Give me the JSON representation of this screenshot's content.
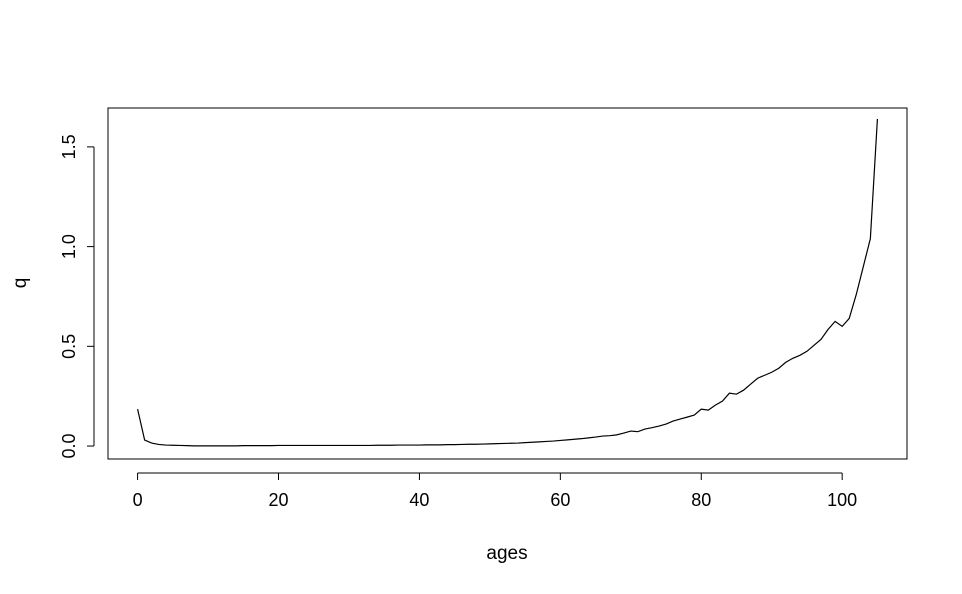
{
  "chart_data": {
    "type": "line",
    "title": "",
    "xlabel": "ages",
    "ylabel": "q",
    "xlim": [
      -4.2,
      109.2
    ],
    "ylim": [
      -0.065,
      1.695
    ],
    "grid": false,
    "legend": "none",
    "xticks": [
      0,
      20,
      40,
      60,
      80,
      100
    ],
    "yticks": [
      0.0,
      0.5,
      1.0,
      1.5
    ],
    "xtick_labels": [
      "0",
      "20",
      "40",
      "60",
      "80",
      "100"
    ],
    "ytick_labels": [
      "0.0",
      "0.5",
      "1.0",
      "1.5"
    ],
    "line_color": "#000000",
    "series": [
      {
        "x": [
          0,
          1,
          2,
          3,
          4,
          5,
          6,
          7,
          8,
          9,
          10,
          11,
          12,
          13,
          14,
          15,
          16,
          17,
          18,
          19,
          20,
          21,
          22,
          23,
          24,
          25,
          26,
          27,
          28,
          29,
          30,
          31,
          32,
          33,
          34,
          35,
          36,
          37,
          38,
          39,
          40,
          41,
          42,
          43,
          44,
          45,
          46,
          47,
          48,
          49,
          50,
          51,
          52,
          53,
          54,
          55,
          56,
          57,
          58,
          59,
          60,
          61,
          62,
          63,
          64,
          65,
          66,
          67,
          68,
          69,
          70,
          71,
          72,
          73,
          74,
          75,
          76,
          77,
          78,
          79,
          80,
          81,
          82,
          83,
          84,
          85,
          86,
          87,
          88,
          89,
          90,
          91,
          92,
          93,
          94,
          95,
          96,
          97,
          98,
          99,
          100,
          101,
          102,
          103,
          104,
          105
        ],
        "values": [
          0.185,
          0.03,
          0.015,
          0.008,
          0.005,
          0.004,
          0.003,
          0.002,
          0.001,
          0.001,
          0.001,
          0.001,
          0.001,
          0.001,
          0.001,
          0.002,
          0.002,
          0.002,
          0.002,
          0.002,
          0.003,
          0.003,
          0.003,
          0.003,
          0.003,
          0.003,
          0.003,
          0.003,
          0.003,
          0.003,
          0.003,
          0.003,
          0.003,
          0.003,
          0.004,
          0.004,
          0.004,
          0.005,
          0.005,
          0.005,
          0.005,
          0.006,
          0.006,
          0.006,
          0.007,
          0.007,
          0.008,
          0.009,
          0.009,
          0.01,
          0.011,
          0.012,
          0.013,
          0.014,
          0.015,
          0.017,
          0.019,
          0.021,
          0.023,
          0.025,
          0.028,
          0.031,
          0.034,
          0.037,
          0.041,
          0.045,
          0.05,
          0.052,
          0.056,
          0.065,
          0.075,
          0.072,
          0.085,
          0.092,
          0.1,
          0.11,
          0.125,
          0.135,
          0.145,
          0.155,
          0.185,
          0.18,
          0.205,
          0.225,
          0.265,
          0.26,
          0.28,
          0.31,
          0.34,
          0.355,
          0.37,
          0.39,
          0.42,
          0.44,
          0.455,
          0.475,
          0.505,
          0.535,
          0.585,
          0.625,
          0.6,
          0.64,
          0.76,
          0.9,
          1.04,
          1.64
        ]
      }
    ]
  }
}
